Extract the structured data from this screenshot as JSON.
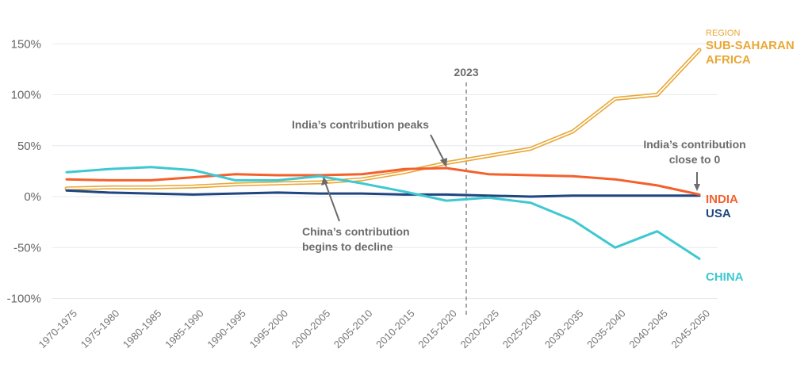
{
  "chart_data": {
    "type": "line",
    "title": "",
    "xlabel": "",
    "ylabel": "",
    "ylim": [
      -100,
      150
    ],
    "yticks": [
      -100,
      -50,
      0,
      50,
      100,
      150
    ],
    "ytick_labels": [
      "-100%",
      "-50%",
      "0%",
      "50%",
      "100%",
      "150%"
    ],
    "grid": "horizontal",
    "categories": [
      "1970-1975",
      "1975-1980",
      "1980-1985",
      "1985-1990",
      "1990-1995",
      "1995-2000",
      "2000-2005",
      "2005-2010",
      "2010-2015",
      "2015-2020",
      "2020-2025",
      "2025-2030",
      "2030-2035",
      "2035-2040",
      "2040-2045",
      "2045-2050"
    ],
    "series": [
      {
        "name": "SUB-SAHARAN AFRICA",
        "group_label": "REGION",
        "color": "#E8A838",
        "style": "double",
        "values": [
          8,
          9,
          9,
          10,
          12,
          13,
          14,
          17,
          24,
          33,
          40,
          47,
          64,
          96,
          100,
          144
        ]
      },
      {
        "name": "INDIA",
        "color": "#F4602C",
        "values": [
          17,
          16,
          16,
          19,
          22,
          21,
          21,
          22,
          27,
          28,
          22,
          21,
          20,
          17,
          11,
          2
        ]
      },
      {
        "name": "USA",
        "color": "#1F4680",
        "values": [
          6,
          4,
          3,
          2,
          3,
          4,
          3,
          3,
          2,
          2,
          1,
          0,
          1,
          1,
          1,
          1
        ]
      },
      {
        "name": "CHINA",
        "color": "#3EC8D0",
        "values": [
          24,
          27,
          29,
          26,
          16,
          16,
          20,
          13,
          5,
          -4,
          -1,
          -6,
          -23,
          -50,
          -34,
          -61
        ]
      }
    ],
    "marker_line": {
      "label": "2023",
      "position": "between 2015-2020 and 2020-2025"
    },
    "annotations": [
      {
        "text": [
          "India’s contribution peaks"
        ],
        "points_to": "INDIA 2015-2020"
      },
      {
        "text": [
          "China’s contribution",
          "begins to decline"
        ],
        "points_to": "2000-2005"
      },
      {
        "text": [
          "India’s contribution",
          "close to 0"
        ],
        "points_to": "INDIA 2045-2050"
      }
    ]
  }
}
